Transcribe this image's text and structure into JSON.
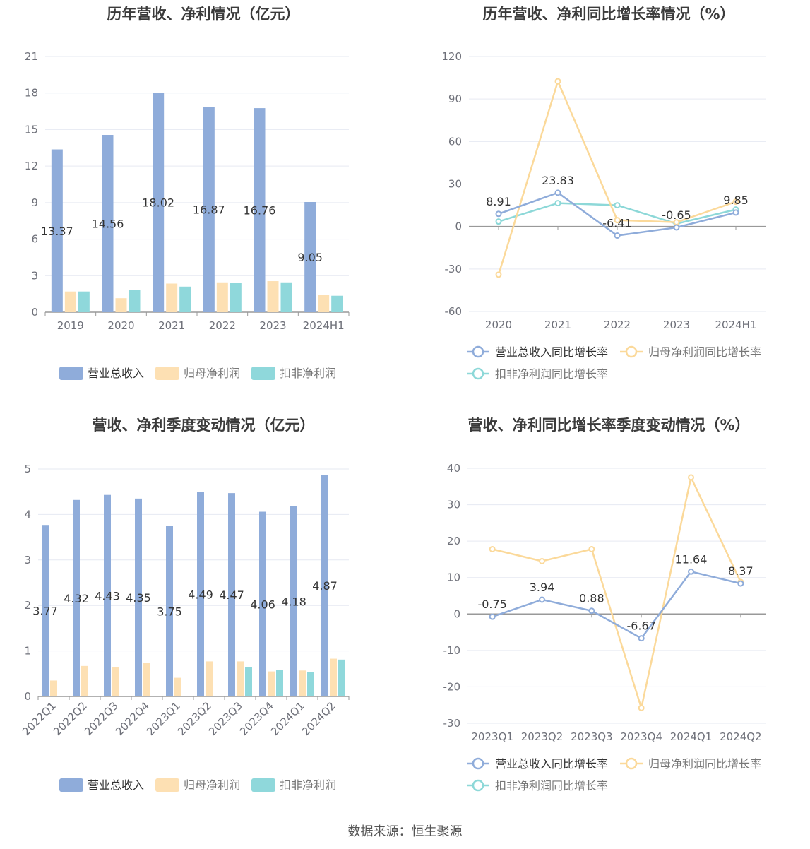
{
  "colors": {
    "revenue": "#8facda",
    "net_profit": "#fde0b3",
    "deducted_profit": "#8fd8db",
    "revenue_line": "#8facda",
    "net_profit_line": "#fbd99a",
    "deducted_profit_line": "#8dd8d8",
    "grid": "#e6e9f2",
    "axis": "#999999",
    "tick_text": "#6e7079",
    "label_text": "#333333"
  },
  "source": "数据来源：恒生聚源",
  "chart_data": [
    {
      "type": "bar",
      "title": "历年营收、净利情况（亿元）",
      "categories": [
        "2019",
        "2020",
        "2021",
        "2022",
        "2023",
        "2024H1"
      ],
      "ylim": [
        0,
        21
      ],
      "yticks": [
        0,
        3,
        6,
        9,
        12,
        15,
        18,
        21
      ],
      "grid": true,
      "legend_position": "bottom",
      "series": [
        {
          "name": "营业总收入",
          "values": [
            13.37,
            14.56,
            18.02,
            16.87,
            16.76,
            9.05
          ],
          "labels": [
            "13.37",
            "14.56",
            "18.02",
            "16.87",
            "16.76",
            "9.05"
          ]
        },
        {
          "name": "归母净利润",
          "values": [
            1.7,
            1.15,
            2.35,
            2.45,
            2.55,
            1.45
          ]
        },
        {
          "name": "扣非净利润",
          "values": [
            1.7,
            1.8,
            2.1,
            2.4,
            2.45,
            1.35
          ]
        }
      ]
    },
    {
      "type": "line",
      "title": "历年营收、净利同比增长率情况（%）",
      "categories": [
        "2020",
        "2021",
        "2022",
        "2023",
        "2024H1"
      ],
      "ylim": [
        -60,
        120
      ],
      "yticks": [
        -60,
        -30,
        0,
        30,
        60,
        90,
        120
      ],
      "grid": true,
      "legend_position": "bottom",
      "series": [
        {
          "name": "营业总收入同比增长率",
          "values": [
            8.91,
            23.83,
            -6.41,
            -0.65,
            9.85
          ],
          "labels": [
            "8.91",
            "23.83",
            "-6.41",
            "-0.65",
            "9.85"
          ]
        },
        {
          "name": "归母净利润同比增长率",
          "values": [
            -34,
            102.5,
            4.5,
            3,
            17.5
          ]
        },
        {
          "name": "扣非净利润同比增长率",
          "values": [
            3.5,
            16.5,
            15,
            2,
            12
          ]
        }
      ]
    },
    {
      "type": "bar",
      "title": "营收、净利季度变动情况（亿元）",
      "categories": [
        "2022Q1",
        "2022Q2",
        "2022Q3",
        "2022Q4",
        "2023Q1",
        "2023Q2",
        "2023Q3",
        "2023Q4",
        "2024Q1",
        "2024Q2"
      ],
      "ylim": [
        0,
        5
      ],
      "yticks": [
        0,
        1,
        2,
        3,
        4,
        5
      ],
      "grid": true,
      "legend_position": "bottom",
      "series": [
        {
          "name": "营业总收入",
          "values": [
            3.77,
            4.32,
            4.43,
            4.35,
            3.75,
            4.49,
            4.47,
            4.06,
            4.18,
            4.87
          ],
          "labels": [
            "3.77",
            "4.32",
            "4.43",
            "4.35",
            "3.75",
            "4.49",
            "4.47",
            "4.06",
            "4.18",
            "4.87"
          ]
        },
        {
          "name": "归母净利润",
          "values": [
            0.35,
            0.67,
            0.65,
            0.74,
            0.41,
            0.77,
            0.77,
            0.55,
            0.57,
            0.83
          ]
        },
        {
          "name": "扣非净利润",
          "values": [
            null,
            null,
            null,
            null,
            null,
            null,
            0.64,
            0.58,
            0.53,
            0.81
          ]
        }
      ]
    },
    {
      "type": "line",
      "title": "营收、净利同比增长率季度变动情况（%）",
      "categories": [
        "2023Q1",
        "2023Q2",
        "2023Q3",
        "2023Q4",
        "2024Q1",
        "2024Q2"
      ],
      "ylim": [
        -30,
        40
      ],
      "yticks": [
        -30,
        -20,
        -10,
        0,
        10,
        20,
        30,
        40
      ],
      "grid": true,
      "legend_position": "bottom",
      "series": [
        {
          "name": "营业总收入同比增长率",
          "values": [
            -0.75,
            3.94,
            0.88,
            -6.67,
            11.64,
            8.37
          ],
          "labels": [
            "-0.75",
            "3.94",
            "0.88",
            "-6.67",
            "11.64",
            "8.37"
          ]
        },
        {
          "name": "归母净利润同比增长率",
          "values": [
            17.8,
            14.5,
            17.8,
            -25.8,
            37.5,
            8.8
          ]
        },
        {
          "name": "扣非净利润同比增长率",
          "values": [
            null,
            null,
            null,
            null,
            null,
            null
          ]
        }
      ]
    }
  ]
}
